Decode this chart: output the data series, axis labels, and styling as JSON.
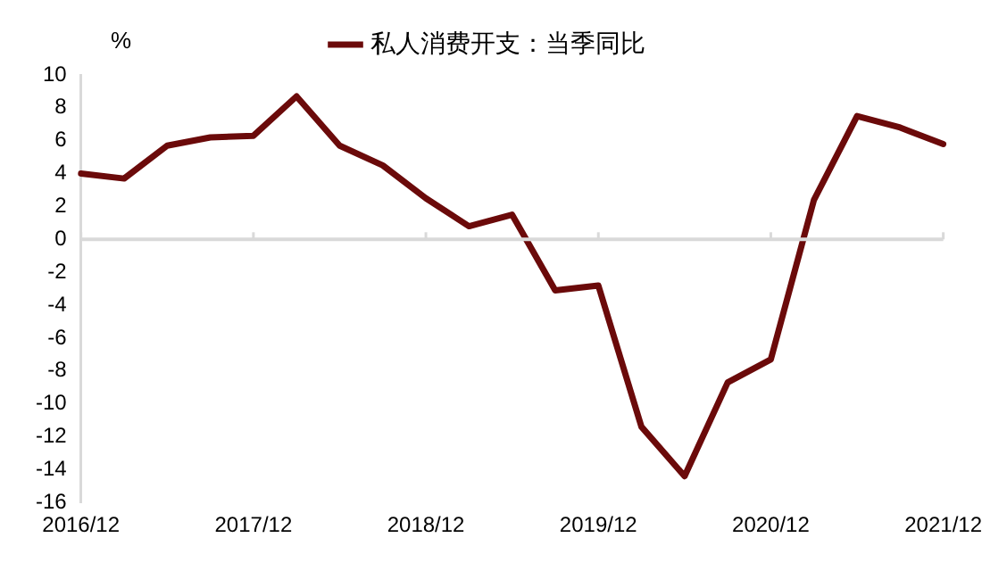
{
  "chart_data": {
    "type": "line",
    "ylabel": "%",
    "categories": [
      "2016/12",
      null,
      null,
      null,
      "2017/12",
      null,
      null,
      null,
      "2018/12",
      null,
      null,
      null,
      "2019/12",
      null,
      null,
      null,
      "2020/12",
      null,
      null,
      null,
      "2021/12"
    ],
    "series": [
      {
        "name": "私人消费开支：当季同比",
        "color": "#6b0a0a",
        "values": [
          4.0,
          3.7,
          5.7,
          6.2,
          6.3,
          8.7,
          5.7,
          4.5,
          2.5,
          0.8,
          1.5,
          -3.1,
          -2.8,
          -11.4,
          -14.4,
          -8.7,
          -7.3,
          2.4,
          7.5,
          6.8,
          5.8
        ]
      }
    ],
    "ylim": [
      -16,
      10
    ],
    "yticks": [
      -16,
      -14,
      -12,
      -10,
      -8,
      -6,
      -4,
      -2,
      0,
      2,
      4,
      6,
      8,
      10
    ],
    "ref_lines": [
      {
        "axis": "y",
        "value": 0,
        "color": "#d9d9d9",
        "line_style": "solid"
      }
    ],
    "grid": false,
    "legend": "top",
    "marker": "none",
    "line_style": "solid"
  }
}
